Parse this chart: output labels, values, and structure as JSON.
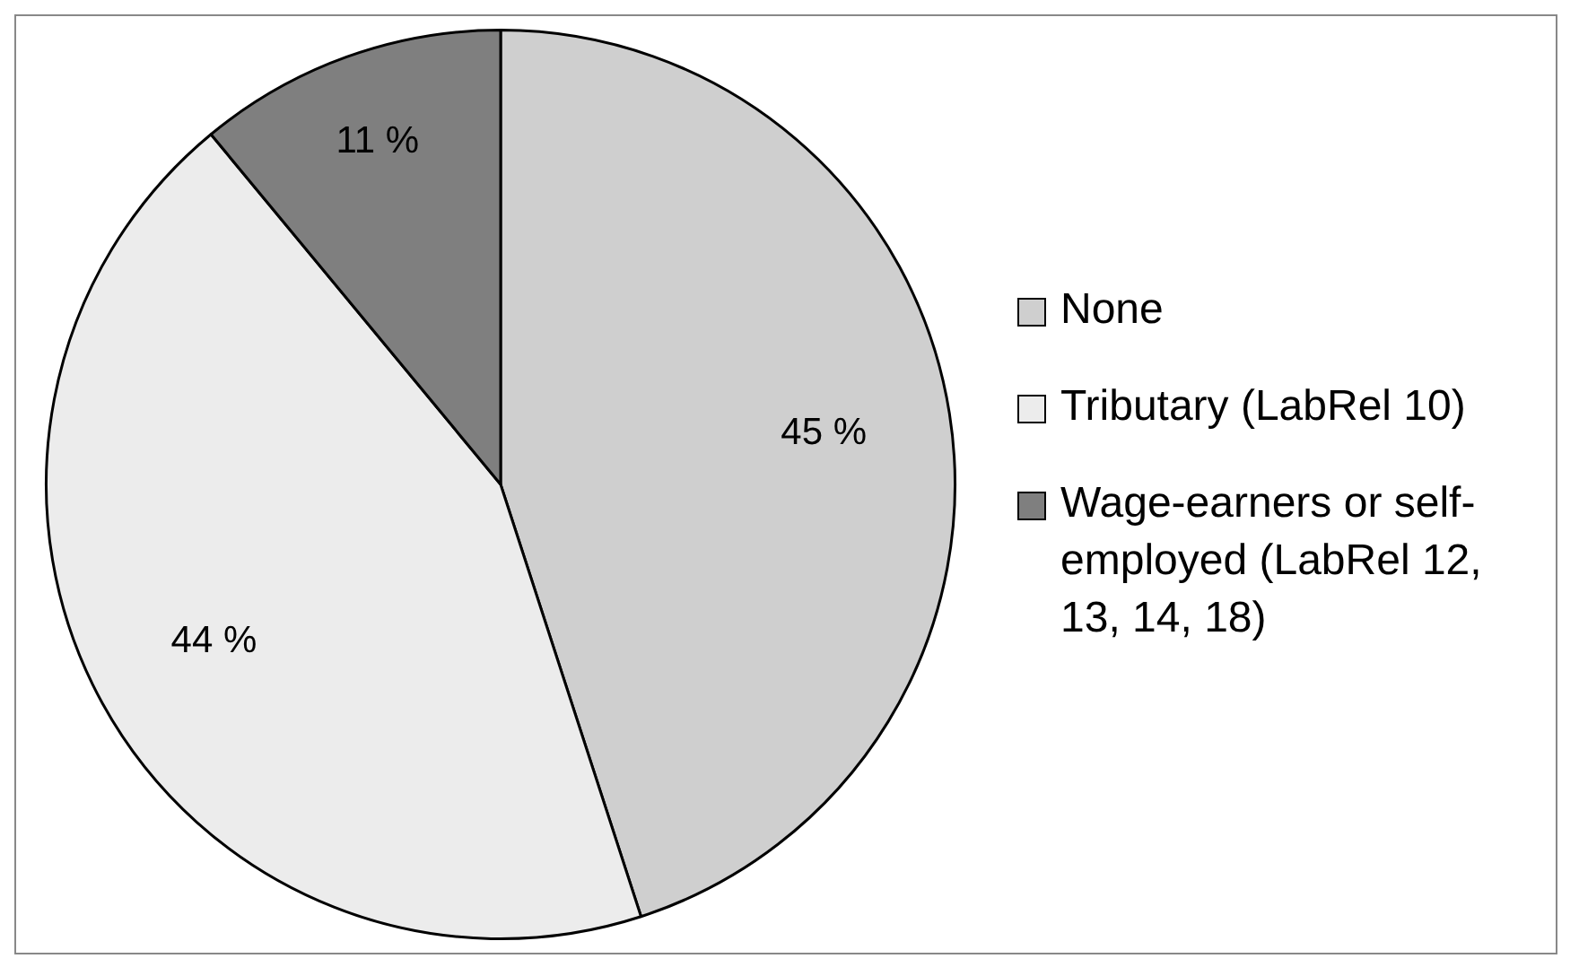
{
  "chart_data": {
    "type": "pie",
    "categories": [
      "None",
      "Tributary (LabRel 10)",
      "Wage-earners or self-employed (LabRel 12, 13, 14, 18)"
    ],
    "values": [
      45,
      44,
      11
    ],
    "colors": [
      "#cfcfcf",
      "#ececec",
      "#7f7f7f"
    ],
    "value_labels": [
      "45 %",
      "44 %",
      "11 %"
    ],
    "legend": "right"
  }
}
